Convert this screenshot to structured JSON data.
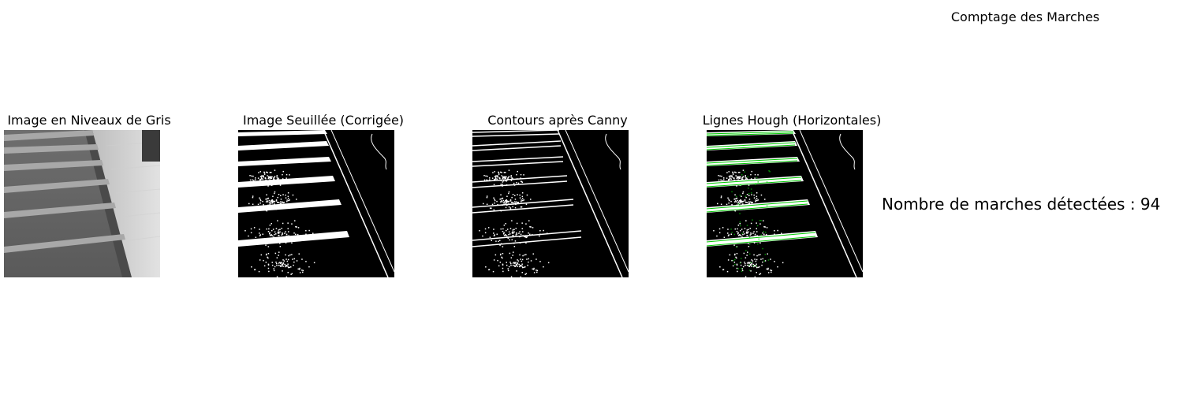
{
  "figure": {
    "suptitle": "Comptage des Marches"
  },
  "panels": [
    {
      "title": "Image en Niveaux de Gris"
    },
    {
      "title": "Image Seuillée (Corrigée)"
    },
    {
      "title": "Contours après Canny"
    },
    {
      "title": "Lignes Hough (Horizontales)"
    }
  ],
  "result": {
    "text": "Nombre de marches détectées : 94"
  },
  "colors": {
    "background": "#ffffff",
    "hough_lines": "#00c800",
    "binary_fg": "#ffffff",
    "binary_bg": "#000000"
  }
}
